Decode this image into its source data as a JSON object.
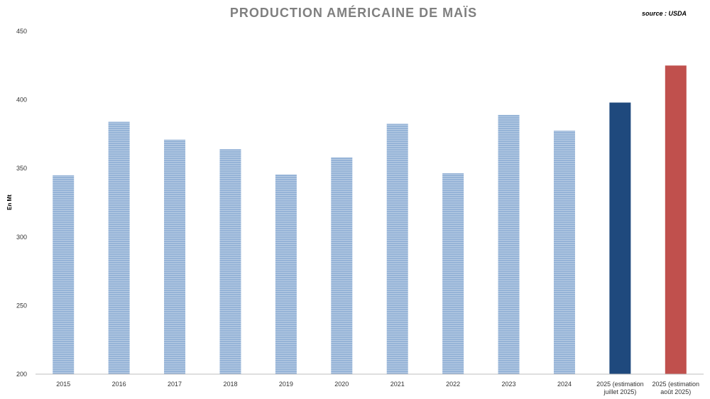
{
  "chart_data": {
    "type": "bar",
    "title": "PRODUCTION AMÉRICAINE DE MAÏS",
    "source": "source : USDA",
    "ylabel": "En Mt",
    "xlabel": "",
    "ylim": [
      200,
      450
    ],
    "yticks": [
      200,
      250,
      300,
      350,
      400,
      450
    ],
    "grid": false,
    "legend": "none",
    "categories": [
      "2015",
      "2016",
      "2017",
      "2018",
      "2019",
      "2020",
      "2021",
      "2022",
      "2023",
      "2024",
      "2025 (estimation juillet 2025)",
      "2025 (estimation août 2025)"
    ],
    "category_lines": [
      [
        "2015"
      ],
      [
        "2016"
      ],
      [
        "2017"
      ],
      [
        "2018"
      ],
      [
        "2019"
      ],
      [
        "2020"
      ],
      [
        "2021"
      ],
      [
        "2022"
      ],
      [
        "2023"
      ],
      [
        "2024"
      ],
      [
        "2025 (estimation",
        "juillet 2025)"
      ],
      [
        "2025 (estimation",
        "août 2025)"
      ]
    ],
    "values": [
      345,
      384,
      371,
      364,
      345.5,
      358,
      382.5,
      346.5,
      389,
      377.5,
      398,
      425
    ],
    "colors": [
      "#95b3d7",
      "#95b3d7",
      "#95b3d7",
      "#95b3d7",
      "#95b3d7",
      "#95b3d7",
      "#95b3d7",
      "#95b3d7",
      "#95b3d7",
      "#95b3d7",
      "#1f497d",
      "#c0504d"
    ]
  }
}
